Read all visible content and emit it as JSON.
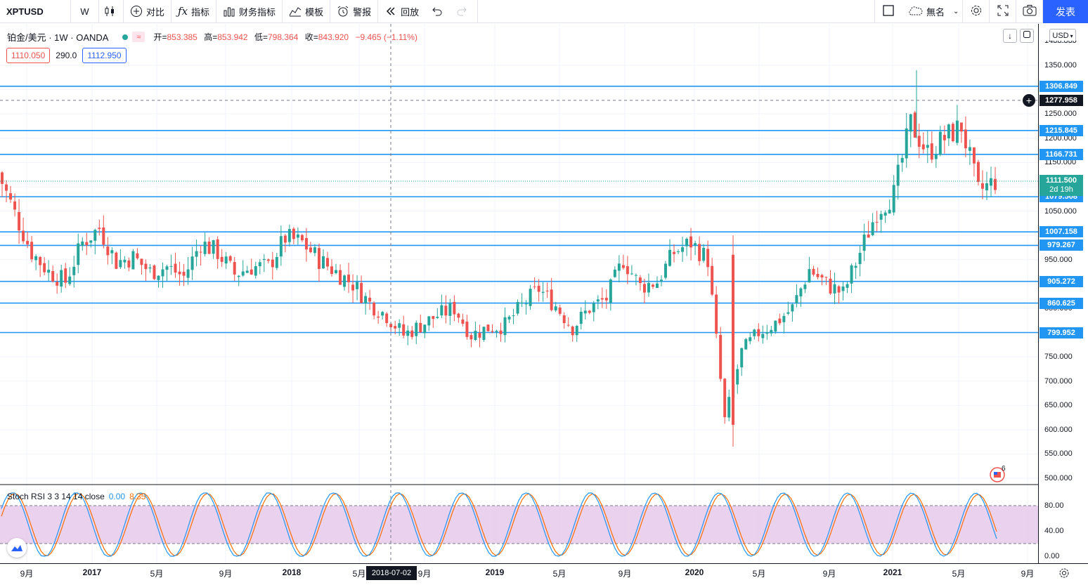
{
  "toolbar": {
    "symbol": "XPTUSD",
    "interval": "W",
    "compare_label": "对比",
    "indicators_label": "指标",
    "financials_label": "财务指标",
    "templates_label": "模板",
    "alert_label": "警报",
    "replay_label": "回放",
    "layout_name": "無名",
    "publish_label": "发表"
  },
  "legend": {
    "title": "铂金/美元 · 1W · OANDA",
    "session_icon": "≈",
    "open_label": "开=",
    "open": "853.385",
    "high_label": "高=",
    "high": "853.942",
    "low_label": "低=",
    "low": "798.364",
    "close_label": "收=",
    "close": "843.920",
    "change": "−9.465 (−1.11%)",
    "bid": "1110.050",
    "spread": "290.0",
    "ask": "1112.950"
  },
  "price_scale": {
    "currency": "USD",
    "ticks": [
      "1350.000",
      "1300.000",
      "1250.000",
      "1200.000",
      "1150.000",
      "1100.000",
      "1050.000",
      "1000.000",
      "950.000",
      "900.000",
      "850.000",
      "800.000",
      "750.000",
      "700.000",
      "650.000",
      "600.000",
      "550.000",
      "500.000"
    ],
    "levels": [
      "1306.849",
      "1215.845",
      "1166.731",
      "1079.508",
      "1007.158",
      "979.267",
      "905.272",
      "860.625",
      "799.952"
    ],
    "cursor_price": "1277.958",
    "last_price": "1111.500",
    "countdown": "2d 19h",
    "partial_top": "1400.000"
  },
  "stoch": {
    "title": "Stoch RSI 3 3 14 14 close",
    "k_value": "0.00",
    "d_value": "8.35",
    "ticks": [
      "80.00",
      "40.00",
      "0.00"
    ]
  },
  "time_axis": {
    "labels": [
      "9月",
      "2017",
      "5月",
      "9月",
      "2018",
      "5月",
      "9月",
      "2019",
      "5月",
      "9月",
      "2020",
      "5月",
      "9月",
      "2021",
      "5月",
      "9月"
    ],
    "bold": [
      false,
      true,
      false,
      false,
      true,
      false,
      false,
      true,
      false,
      false,
      true,
      false,
      false,
      true,
      false,
      false
    ],
    "cursor_date": "2018-07-02"
  },
  "news": {
    "count": "6"
  },
  "colors": {
    "up": "#26a69a",
    "down": "#ef5350",
    "level_line": "#2196f3",
    "stoch_k": "#2196f3",
    "stoch_d": "#ff6d00",
    "stoch_band": "#e1bee7"
  },
  "icons": [
    "candles-icon",
    "plus-circle-icon",
    "fx-icon",
    "bar-chart-icon",
    "templates-icon",
    "alarm-icon",
    "replay-icon",
    "undo-icon",
    "redo-icon",
    "square-icon",
    "cloud-icon",
    "gear-icon",
    "fullscreen-icon",
    "camera-icon"
  ],
  "chart_data": {
    "type": "candlestick",
    "symbol": "XPTUSD",
    "interval": "1W",
    "ylim": [
      480,
      1400
    ],
    "y_ticks": [
      500,
      550,
      600,
      650,
      700,
      750,
      800,
      850,
      900,
      950,
      1000,
      1050,
      1100,
      1150,
      1200,
      1250,
      1300,
      1350
    ],
    "x_range": [
      "2016-08",
      "2021-09"
    ],
    "horizontal_levels": [
      1306.849,
      1215.845,
      1166.731,
      1079.508,
      1007.158,
      979.267,
      905.272,
      860.625,
      799.952
    ],
    "close_series": [
      {
        "x": "2016-08",
        "close": 1130
      },
      {
        "x": "2016-09",
        "close": 1045
      },
      {
        "x": "2016-10",
        "close": 965
      },
      {
        "x": "2016-11",
        "close": 925
      },
      {
        "x": "2016-12",
        "close": 905
      },
      {
        "x": "2017-01",
        "close": 985
      },
      {
        "x": "2017-02",
        "close": 1015
      },
      {
        "x": "2017-03",
        "close": 945
      },
      {
        "x": "2017-04",
        "close": 955
      },
      {
        "x": "2017-05",
        "close": 925
      },
      {
        "x": "2017-06",
        "close": 935
      },
      {
        "x": "2017-07",
        "close": 915
      },
      {
        "x": "2017-08",
        "close": 985
      },
      {
        "x": "2017-09",
        "close": 965
      },
      {
        "x": "2017-10",
        "close": 920
      },
      {
        "x": "2017-11",
        "close": 935
      },
      {
        "x": "2017-12",
        "close": 935
      },
      {
        "x": "2018-01",
        "close": 995
      },
      {
        "x": "2018-02",
        "close": 985
      },
      {
        "x": "2018-03",
        "close": 950
      },
      {
        "x": "2018-04",
        "close": 925
      },
      {
        "x": "2018-05",
        "close": 900
      },
      {
        "x": "2018-06",
        "close": 860
      },
      {
        "x": "2018-07",
        "close": 835
      },
      {
        "x": "2018-08",
        "close": 795
      },
      {
        "x": "2018-09",
        "close": 815
      },
      {
        "x": "2018-10",
        "close": 835
      },
      {
        "x": "2018-11",
        "close": 850
      },
      {
        "x": "2018-12",
        "close": 795
      },
      {
        "x": "2019-01",
        "close": 810
      },
      {
        "x": "2019-02",
        "close": 815
      },
      {
        "x": "2019-03",
        "close": 855
      },
      {
        "x": "2019-04",
        "close": 890
      },
      {
        "x": "2019-05",
        "close": 855
      },
      {
        "x": "2019-06",
        "close": 810
      },
      {
        "x": "2019-07",
        "close": 850
      },
      {
        "x": "2019-08",
        "close": 870
      },
      {
        "x": "2019-09",
        "close": 950
      },
      {
        "x": "2019-10",
        "close": 895
      },
      {
        "x": "2019-11",
        "close": 905
      },
      {
        "x": "2019-12",
        "close": 965
      },
      {
        "x": "2020-01",
        "close": 985
      },
      {
        "x": "2020-02",
        "close": 950
      },
      {
        "x": "2020-03",
        "close": 620
      },
      {
        "x": "2020-04",
        "close": 760
      },
      {
        "x": "2020-05",
        "close": 800
      },
      {
        "x": "2020-06",
        "close": 820
      },
      {
        "x": "2020-07",
        "close": 850
      },
      {
        "x": "2020-08",
        "close": 930
      },
      {
        "x": "2020-09",
        "close": 900
      },
      {
        "x": "2020-10",
        "close": 880
      },
      {
        "x": "2020-11",
        "close": 965
      },
      {
        "x": "2020-12",
        "close": 1050
      },
      {
        "x": "2021-01",
        "close": 1085
      },
      {
        "x": "2021-02",
        "close": 1230
      },
      {
        "x": "2021-03",
        "close": 1170
      },
      {
        "x": "2021-04",
        "close": 1200
      },
      {
        "x": "2021-05",
        "close": 1225
      },
      {
        "x": "2021-06",
        "close": 1090
      },
      {
        "x": "2021-07",
        "close": 1111.5
      }
    ],
    "indicator": {
      "name": "Stoch RSI 3 3 14 14 close",
      "ylim": [
        0,
        100
      ],
      "upper_band": 80,
      "lower_band": 20,
      "k_last": 0.0,
      "d_last": 8.35
    }
  }
}
